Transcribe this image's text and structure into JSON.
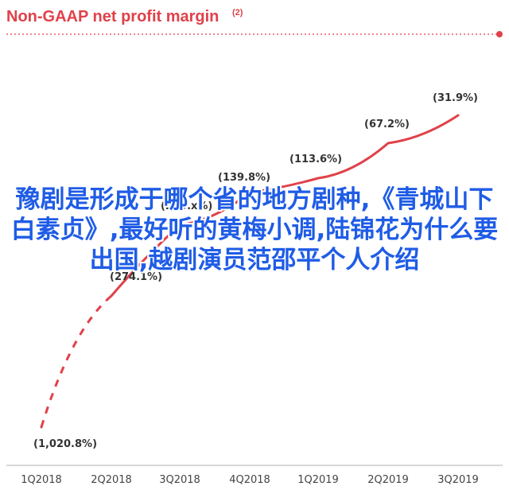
{
  "chart_data": {
    "type": "line",
    "title": "Non-GAAP net profit margin",
    "title_footnote": "(2)",
    "categories": [
      "1Q2018",
      "2Q2018",
      "3Q2018",
      "4Q2018",
      "1Q2019",
      "2Q2019",
      "3Q2019"
    ],
    "values": [
      -1020.8,
      -274.1,
      -203.0,
      -139.8,
      -113.6,
      -67.2,
      -31.9
    ],
    "data_labels": [
      "(1,020.8%)",
      "(274.1%)",
      "(203.x%)",
      "(139.8%)",
      "(113.6%)",
      "(67.2%)",
      "(31.9%)"
    ],
    "dashed_segment": [
      0,
      1
    ],
    "line_color": "#e0414a",
    "xlabel": "",
    "ylabel": "",
    "grid": false
  },
  "overlay_text": "豫剧是形成于哪个省的地方剧种,《青城山下白素贞》,最好听的黄梅小调,陆锦花为什么要出国,越剧演员范邵平个人介绍"
}
